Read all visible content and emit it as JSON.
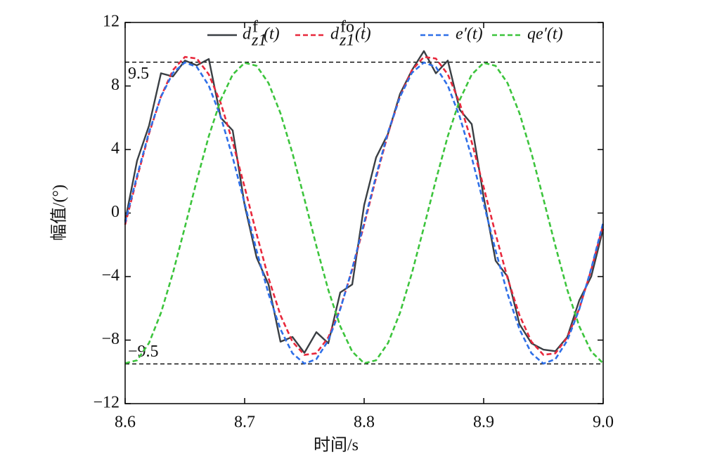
{
  "chart_data": {
    "type": "line",
    "xlabel": "时间/s",
    "ylabel": "幅值/(°)",
    "x": [
      8.6,
      8.61,
      8.62,
      8.63,
      8.64,
      8.65,
      8.66,
      8.67,
      8.68,
      8.69,
      8.7,
      8.71,
      8.72,
      8.73,
      8.74,
      8.75,
      8.76,
      8.77,
      8.78,
      8.79,
      8.8,
      8.81,
      8.82,
      8.83,
      8.84,
      8.85,
      8.86,
      8.87,
      8.88,
      8.89,
      8.9,
      8.91,
      8.92,
      8.93,
      8.94,
      8.95,
      8.96,
      8.97,
      8.98,
      8.99,
      9.0
    ],
    "series": [
      {
        "name": "d",
        "name_sup": "f",
        "name_sub": "z1",
        "name_suffix": "(t)",
        "color": "#3a3f44",
        "dash": false,
        "values": [
          -0.5,
          3.3,
          5.5,
          8.8,
          8.6,
          9.6,
          9.3,
          9.7,
          6.0,
          5.2,
          0.5,
          -2.8,
          -4.5,
          -8.1,
          -7.8,
          -8.8,
          -7.5,
          -8.2,
          -5.0,
          -4.5,
          0.5,
          3.5,
          5.0,
          7.5,
          9.0,
          10.2,
          8.8,
          9.6,
          6.5,
          5.6,
          1.0,
          -3.0,
          -4.0,
          -7.0,
          -8.2,
          -8.6,
          -8.7,
          -7.8,
          -5.5,
          -4.0,
          -1.0
        ]
      },
      {
        "name": "d",
        "name_sup": "fo",
        "name_sub": "z1",
        "name_suffix": "(t)",
        "color": "#e8283c",
        "dash": true,
        "values": [
          -0.73,
          2.22,
          5.0,
          7.34,
          9.0,
          9.83,
          9.73,
          8.73,
          6.92,
          4.47,
          1.63,
          -1.32,
          -4.1,
          -6.44,
          -8.1,
          -8.93,
          -8.83,
          -7.83,
          -6.02,
          -3.57,
          -0.73,
          2.22,
          5.0,
          7.34,
          9.0,
          9.83,
          9.73,
          8.73,
          6.92,
          4.47,
          1.63,
          -1.32,
          -4.1,
          -6.44,
          -8.1,
          -8.93,
          -8.83,
          -7.83,
          -6.02,
          -3.57,
          -0.73
        ]
      },
      {
        "name": "e′(t)",
        "color": "#2e6fe8",
        "dash": true,
        "values": [
          -0.6,
          2.36,
          5.09,
          7.32,
          8.83,
          9.48,
          9.2,
          8.02,
          6.06,
          3.5,
          0.6,
          -2.36,
          -5.09,
          -7.32,
          -8.83,
          -9.48,
          -9.2,
          -8.02,
          -6.06,
          -3.5,
          -0.6,
          2.36,
          5.09,
          7.32,
          8.83,
          9.48,
          9.2,
          8.02,
          6.06,
          3.5,
          0.6,
          -2.36,
          -5.09,
          -7.32,
          -8.83,
          -9.48,
          -9.2,
          -8.02,
          -6.06,
          -3.5,
          -0.6
        ]
      },
      {
        "name": "qe′(t)",
        "color": "#3cc43c",
        "dash": true,
        "values": [
          -9.46,
          -9.27,
          -8.18,
          -6.28,
          -3.77,
          -0.89,
          2.07,
          4.84,
          7.13,
          8.72,
          9.46,
          9.27,
          8.18,
          6.28,
          3.77,
          0.89,
          -2.07,
          -4.84,
          -7.13,
          -8.72,
          -9.46,
          -9.27,
          -8.18,
          -6.28,
          -3.77,
          -0.89,
          2.07,
          4.84,
          7.13,
          8.72,
          9.46,
          9.27,
          8.18,
          6.28,
          3.77,
          0.89,
          -2.07,
          -4.84,
          -7.13,
          -8.72,
          -9.46
        ]
      }
    ],
    "hlines": [
      {
        "value": 9.5,
        "label": "9.5"
      },
      {
        "value": -9.5,
        "label": "−9.5"
      }
    ],
    "xlim": [
      8.6,
      9.0
    ],
    "xticks": [
      8.6,
      8.7,
      8.8,
      8.9,
      {
        "value": 9.0,
        "label": "9.0"
      }
    ],
    "ylim": [
      -12,
      12
    ],
    "yticks": [
      {
        "value": -12,
        "label": "−12"
      },
      {
        "value": -8,
        "label": "−8"
      },
      {
        "value": -4,
        "label": "−4"
      },
      0,
      4,
      8,
      12
    ],
    "grid": false,
    "legend": "top"
  }
}
